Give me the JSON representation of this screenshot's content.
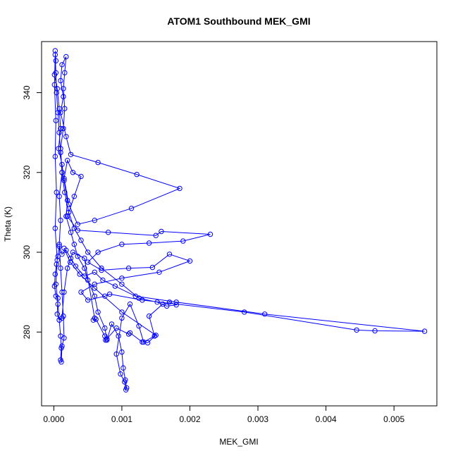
{
  "chart_data": {
    "type": "scatter",
    "title": "ATOM1 Southbound MEK_GMI",
    "xlabel": "MEK_GMI",
    "ylabel": "Theta (K)",
    "xlim": [
      -0.00018,
      0.00563
    ],
    "ylim": [
      261.5,
      352.8
    ],
    "x_ticks": [
      0.0,
      0.001,
      0.002,
      0.003,
      0.004,
      0.005
    ],
    "x_tick_labels": [
      "0.000",
      "0.001",
      "0.002",
      "0.003",
      "0.004",
      "0.005"
    ],
    "y_ticks": [
      280,
      300,
      320,
      340
    ],
    "y_tick_labels": [
      "280",
      "300",
      "320",
      "340"
    ],
    "grid": false,
    "legend": "none",
    "marker": "open-circle",
    "line": true,
    "color": "#0000ff",
    "series": [
      {
        "points": [
          [
            2e-05,
            350.5
          ],
          [
            3e-05,
            348.0
          ],
          [
            1e-05,
            344.5
          ],
          [
            5e-05,
            341.0
          ],
          [
            8e-05,
            336.0
          ],
          [
            0.0001,
            331.0
          ],
          [
            7e-05,
            326.0
          ],
          [
            0.00012,
            322.0
          ],
          [
            0.00015,
            318.0
          ],
          [
            0.0002,
            313.0
          ],
          [
            0.00018,
            309.0
          ],
          [
            0.00025,
            305.0
          ],
          [
            0.0003,
            302.0
          ],
          [
            0.00035,
            299.0
          ],
          [
            0.00045,
            296.0
          ],
          [
            0.0005,
            293.0
          ],
          [
            0.0006,
            289.0
          ],
          [
            0.00065,
            285.0
          ],
          [
            0.00075,
            281.0
          ],
          [
            0.00078,
            278.0
          ],
          [
            0.00085,
            282.0
          ],
          [
            0.00095,
            279.0
          ],
          [
            0.001,
            275.0
          ],
          [
            0.00102,
            271.0
          ],
          [
            0.00105,
            268.0
          ],
          [
            0.00107,
            266.0
          ],
          [
            0.00106,
            265.5
          ],
          [
            0.00104,
            267.5
          ],
          [
            0.00098,
            269.5
          ],
          [
            0.00092,
            274.5
          ],
          [
            0.001,
            283.5
          ],
          [
            0.00112,
            287.0
          ],
          [
            0.00125,
            281.5
          ],
          [
            0.00132,
            277.5
          ],
          [
            0.00148,
            279.0
          ],
          [
            0.00148,
            279.0
          ],
          [
            0.0014,
            284.0
          ],
          [
            0.0016,
            287.0
          ],
          [
            0.0017,
            287.5
          ],
          [
            0.0018,
            286.8
          ],
          [
            0.00166,
            286.5
          ],
          [
            0.00152,
            287.5
          ],
          [
            0.00125,
            288.5
          ],
          [
            0.001,
            292.0
          ],
          [
            0.0007,
            296.0
          ],
          [
            0.0005,
            300.0
          ],
          [
            0.0004,
            303.0
          ],
          [
            0.0003,
            306.0
          ],
          [
            0.00022,
            310.0
          ],
          [
            0.00016,
            315.0
          ],
          [
            0.00012,
            320.0
          ],
          [
            0.0001,
            325.0
          ],
          [
            8e-05,
            330.0
          ],
          [
            6e-05,
            335.0
          ],
          [
            4e-05,
            340.0
          ],
          [
            3e-05,
            345.0
          ],
          [
            2e-05,
            349.5
          ],
          [
            1e-05,
            342.0
          ],
          [
            3e-05,
            333.0
          ],
          [
            2e-05,
            324.0
          ],
          [
            4e-05,
            315.0
          ],
          [
            2e-05,
            306.0
          ],
          [
            5e-05,
            298.0
          ],
          [
            3e-05,
            292.0
          ],
          [
            6e-05,
            287.0
          ],
          [
            8e-05,
            283.0
          ],
          [
            0.0001,
            279.0
          ],
          [
            0.00011,
            276.0
          ],
          [
            0.0001,
            273.0
          ],
          [
            0.00011,
            272.5
          ],
          [
            0.00012,
            276.5
          ],
          [
            0.00015,
            278.5
          ],
          [
            0.00014,
            284.0
          ],
          [
            0.00012,
            290.0
          ],
          [
            0.0001,
            296.0
          ],
          [
            8e-05,
            302.0
          ],
          [
            0.0001,
            308.0
          ],
          [
            8e-05,
            314.0
          ],
          [
            0.00012,
            320.0
          ],
          [
            0.0001,
            326.0
          ],
          [
            0.00014,
            331.0
          ],
          [
            0.00016,
            336.0
          ],
          [
            0.00014,
            341.0
          ],
          [
            0.00016,
            345.0
          ],
          [
            0.00018,
            349.0
          ],
          [
            0.00012,
            347.0
          ],
          [
            0.0001,
            343.0
          ],
          [
            0.00014,
            339.0
          ],
          [
            0.0001,
            335.0
          ],
          [
            0.00018,
            329.0
          ],
          [
            0.00025,
            324.5
          ],
          [
            0.00065,
            322.5
          ],
          [
            0.00122,
            319.5
          ],
          [
            0.00185,
            316.0
          ],
          [
            0.00114,
            311.0
          ],
          [
            0.0006,
            308.0
          ],
          [
            0.00035,
            307.0
          ],
          [
            0.00022,
            312.0
          ],
          [
            0.00015,
            318.5
          ],
          [
            0.0002,
            323.0
          ],
          [
            0.00028,
            320.0
          ],
          [
            0.0004,
            319.0
          ],
          [
            0.0003,
            314.0
          ],
          [
            0.0002,
            309.0
          ],
          [
            0.00035,
            305.5
          ],
          [
            0.0008,
            305.0
          ],
          [
            0.0015,
            304.2
          ],
          [
            0.00158,
            305.2
          ],
          [
            0.0023,
            304.5
          ],
          [
            0.0019,
            302.8
          ],
          [
            0.0014,
            302.3
          ],
          [
            0.001,
            302.0
          ],
          [
            0.00065,
            300.0
          ],
          [
            0.0005,
            297.5
          ],
          [
            0.0007,
            295.5
          ],
          [
            0.0011,
            296.0
          ],
          [
            0.00145,
            296.2
          ],
          [
            0.0017,
            299.5
          ],
          [
            0.002,
            297.8
          ],
          [
            0.00155,
            295.0
          ],
          [
            0.001,
            293.5
          ],
          [
            0.0006,
            292.0
          ],
          [
            0.0004,
            290.0
          ],
          [
            0.0005,
            288.0
          ],
          [
            0.00075,
            289.0
          ],
          [
            0.00082,
            289.5
          ],
          [
            0.0013,
            288.0
          ],
          [
            0.0028,
            285.0
          ],
          [
            0.00445,
            280.5
          ],
          [
            0.00472,
            280.3
          ],
          [
            0.00545,
            280.2
          ],
          [
            0.0031,
            284.5
          ],
          [
            0.0018,
            287.5
          ],
          [
            0.0012,
            289.0
          ],
          [
            0.0009,
            291.5
          ],
          [
            0.00072,
            293.0
          ],
          [
            0.0006,
            295.0
          ],
          [
            0.00045,
            294.0
          ],
          [
            0.00032,
            296.5
          ],
          [
            0.00025,
            298.5
          ],
          [
            0.00018,
            300.5
          ],
          [
            0.00012,
            299.5
          ],
          [
            8e-05,
            301.5
          ],
          [
            6e-05,
            299.0
          ],
          [
            4e-05,
            297.0
          ],
          [
            2e-05,
            294.5
          ],
          [
            1e-05,
            291.5
          ],
          [
            3e-05,
            289.0
          ],
          [
            6e-05,
            288.5
          ],
          [
            5e-05,
            284.5
          ],
          [
            8e-05,
            283.0
          ],
          [
            0.00012,
            283.5
          ],
          [
            0.00015,
            290.0
          ],
          [
            0.0002,
            296.0
          ],
          [
            0.00028,
            300.0
          ],
          [
            0.00045,
            298.5
          ],
          [
            0.0006,
            283.5
          ],
          [
            0.00058,
            283.0
          ],
          [
            0.00062,
            283.2
          ],
          [
            0.00075,
            279.0
          ],
          [
            0.00076,
            278.0
          ],
          [
            0.00078,
            278.3
          ],
          [
            0.00092,
            281.0
          ],
          [
            0.0011,
            279.5
          ],
          [
            0.00112,
            279.8
          ],
          [
            0.0013,
            277.5
          ],
          [
            0.00138,
            277.3
          ],
          [
            0.0015,
            279.2
          ],
          [
            0.001,
            285.0
          ],
          [
            0.0006,
            291.0
          ],
          [
            0.00038,
            294.5
          ],
          [
            0.00024,
            297.5
          ],
          [
            0.00015,
            301.0
          ]
        ]
      }
    ]
  }
}
